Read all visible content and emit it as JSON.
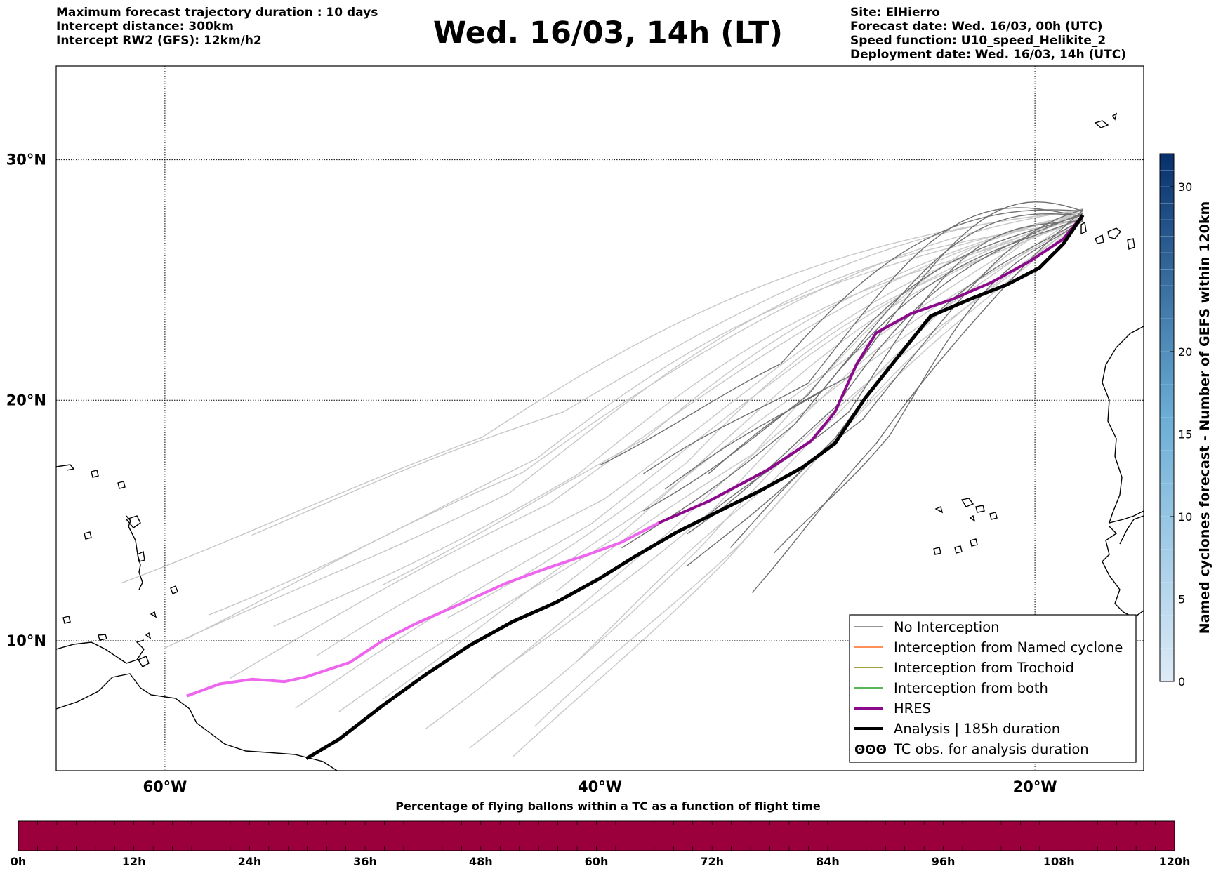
{
  "header": {
    "left_lines": [
      "Maximum forecast trajectory duration : 10 days",
      "Intercept distance: 300km",
      "Intercept RW2 (GFS):  12km/h2"
    ],
    "title": "Wed. 16/03, 14h (LT)",
    "right_lines": [
      "Site: ElHierro",
      "Forecast date: Wed. 16/03, 00h (UTC)",
      "Speed function: U10_speed_Helikite_2",
      "Deployment date: Wed. 16/03, 14h (UTC)"
    ]
  },
  "map": {
    "lon_range": [
      -65,
      -15
    ],
    "lat_range": [
      4.6,
      33.9
    ],
    "lat_labels": [
      "30°N",
      "20°N",
      "10°N"
    ],
    "lat_values": [
      30,
      20,
      10
    ],
    "lon_labels": [
      "60°W",
      "40°W",
      "20°W"
    ],
    "lon_values": [
      -60,
      -40,
      -20
    ],
    "colors": {
      "no_interception_dark": "#707070",
      "no_interception_light": "#c8c8c8",
      "named_cyclone": "#ff6a1f",
      "trochoid": "#808000",
      "both": "#1e9e1e",
      "hres_dark": "#8b0a8b",
      "hres_light": "#ee66ee",
      "analysis": "#000000"
    },
    "hres_track": [
      [
        -17.8,
        27.7
      ],
      [
        -18.7,
        26.7
      ],
      [
        -20.2,
        25.8
      ],
      [
        -22,
        24.9
      ],
      [
        -23.8,
        24.2
      ],
      [
        -25.7,
        23.6
      ],
      [
        -27.3,
        22.8
      ],
      [
        -28.2,
        21.5
      ],
      [
        -29.2,
        19.5
      ],
      [
        -30.3,
        18.3
      ],
      [
        -32.3,
        17.1
      ],
      [
        -35,
        15.8
      ],
      [
        -37.3,
        14.9
      ],
      [
        -39,
        14.1
      ],
      [
        -40.5,
        13.6
      ],
      [
        -42.5,
        13
      ],
      [
        -44.3,
        12.4
      ],
      [
        -46.5,
        11.5
      ],
      [
        -48.5,
        10.7
      ],
      [
        -50,
        10
      ],
      [
        -51.5,
        9.1
      ],
      [
        -53.5,
        8.5
      ],
      [
        -54.5,
        8.3
      ],
      [
        -56,
        8.4
      ],
      [
        -57.5,
        8.2
      ],
      [
        -59,
        7.7
      ]
    ],
    "analysis_track": [
      [
        -17.8,
        27.7
      ],
      [
        -18.7,
        26.5
      ],
      [
        -19.8,
        25.5
      ],
      [
        -21.3,
        24.8
      ],
      [
        -23,
        24.2
      ],
      [
        -24.8,
        23.5
      ],
      [
        -26.3,
        21.8
      ],
      [
        -27.8,
        20.1
      ],
      [
        -29.2,
        18.2
      ],
      [
        -30.7,
        17.2
      ],
      [
        -32.5,
        16.3
      ],
      [
        -34.5,
        15.4
      ],
      [
        -36.5,
        14.5
      ],
      [
        -38.4,
        13.5
      ],
      [
        -40,
        12.6
      ],
      [
        -42,
        11.6
      ],
      [
        -44,
        10.8
      ],
      [
        -46,
        9.8
      ],
      [
        -48,
        8.6
      ],
      [
        -50,
        7.3
      ],
      [
        -52,
        5.9
      ],
      [
        -53.5,
        5.1
      ]
    ],
    "legend": [
      {
        "label": "No Interception",
        "style": "nointerception"
      },
      {
        "label": "Interception from Named cyclone",
        "style": "named"
      },
      {
        "label": "Interception from Trochoid",
        "style": "trochoid"
      },
      {
        "label": "Interception from both",
        "style": "both"
      },
      {
        "label": "HRES",
        "style": "hres"
      },
      {
        "label": "Analysis | 185h duration",
        "style": "analysis"
      },
      {
        "label": "TC obs. for analysis duration",
        "style": "tcobs",
        "symbol": "ʘʘʘ"
      }
    ]
  },
  "colorbar_right": {
    "label": "Named cyclones forecast - Number of GEFS within 120km",
    "min": 0,
    "max": 32,
    "ticks": [
      0,
      5,
      10,
      15,
      20,
      30
    ],
    "tick_labels": [
      "0",
      "5",
      "10",
      "15",
      "20",
      "30"
    ],
    "color_low": "#deebf7",
    "color_high": "#08306b"
  },
  "colorbar_bottom": {
    "title": "Percentage of flying ballons within a TC as a function of flight time",
    "color": "#9b003c",
    "ticks_h": [
      0,
      12,
      24,
      36,
      48,
      60,
      72,
      84,
      96,
      108,
      120
    ],
    "tick_labels": [
      "0h",
      "12h",
      "24h",
      "36h",
      "48h",
      "60h",
      "72h",
      "84h",
      "96h",
      "108h",
      "120h"
    ]
  }
}
